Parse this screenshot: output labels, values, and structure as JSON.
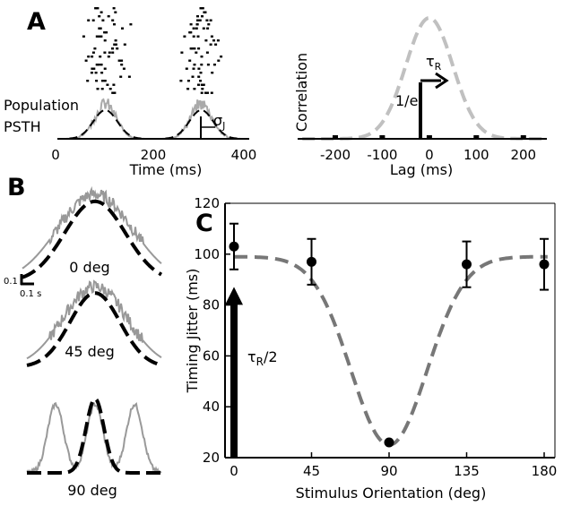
{
  "panel_labels": [
    "A",
    "B",
    "C"
  ],
  "chart_data": [
    {
      "type": "scatter",
      "panel": "A-left",
      "title": "",
      "xlabel": "Time (ms)",
      "ylabel": "",
      "xlim": [
        0,
        400
      ],
      "xticks": [
        0,
        200,
        400
      ],
      "annotations": [
        "Population",
        "PSTH",
        "σJ"
      ],
      "series": [
        {
          "name": "raster",
          "kind": "spike-raster",
          "bursts_center_ms": [
            100,
            300
          ],
          "trials": 22
        },
        {
          "name": "PSTH",
          "kind": "histogram",
          "color": "#aaaaaa"
        },
        {
          "name": "gaussian fit",
          "kind": "dashed",
          "color": "#000000",
          "centers_ms": [
            100,
            300
          ],
          "sigma_ms": 25
        }
      ]
    },
    {
      "type": "line",
      "panel": "A-right",
      "title": "",
      "xlabel": "Lag (ms)",
      "ylabel": "Correlation",
      "xlim": [
        -280,
        250
      ],
      "xticks": [
        -200,
        -100,
        0,
        100,
        200
      ],
      "annotations": [
        "1/e",
        "τR"
      ],
      "series": [
        {
          "name": "correlation",
          "kind": "dashed-gaussian",
          "color": "#bbbbbb",
          "center_ms": 0,
          "sigma_ms": 50
        }
      ]
    },
    {
      "type": "line",
      "panel": "B",
      "title": "",
      "xlabel": "",
      "ylabel": "",
      "annotations": [
        "0 deg",
        "45 deg",
        "90 deg",
        "0.1",
        "0.1 s"
      ],
      "series": [
        {
          "name": "0 deg",
          "psth_color": "#999999",
          "fit_color": "#000000"
        },
        {
          "name": "45 deg",
          "psth_color": "#999999",
          "fit_color": "#000000"
        },
        {
          "name": "90 deg",
          "psth_color": "#999999",
          "fit_color": "#000000"
        }
      ]
    },
    {
      "type": "scatter",
      "panel": "C",
      "title": "",
      "xlabel": "Stimulus Orientation (deg)",
      "ylabel": "Timing Jitter (ms)",
      "xlim": [
        -5,
        185
      ],
      "ylim": [
        20,
        120
      ],
      "xticks": [
        0,
        45,
        90,
        135,
        180
      ],
      "yticks": [
        20,
        40,
        60,
        80,
        100,
        120
      ],
      "annotations": [
        "τR/2"
      ],
      "points": [
        {
          "x": 0,
          "y": 103,
          "err": 9
        },
        {
          "x": 45,
          "y": 97,
          "err": 9
        },
        {
          "x": 90,
          "y": 26,
          "err": 0
        },
        {
          "x": 135,
          "y": 96,
          "err": 9
        },
        {
          "x": 180,
          "y": 96,
          "err": 10
        }
      ],
      "fit": {
        "kind": "dashed",
        "color": "#777777",
        "baseline": 99,
        "minimum": 25,
        "center": 90,
        "width": 22
      },
      "arrow": {
        "x": 0,
        "from_y": 20,
        "to_y": 85,
        "label": "τR/2"
      }
    }
  ]
}
